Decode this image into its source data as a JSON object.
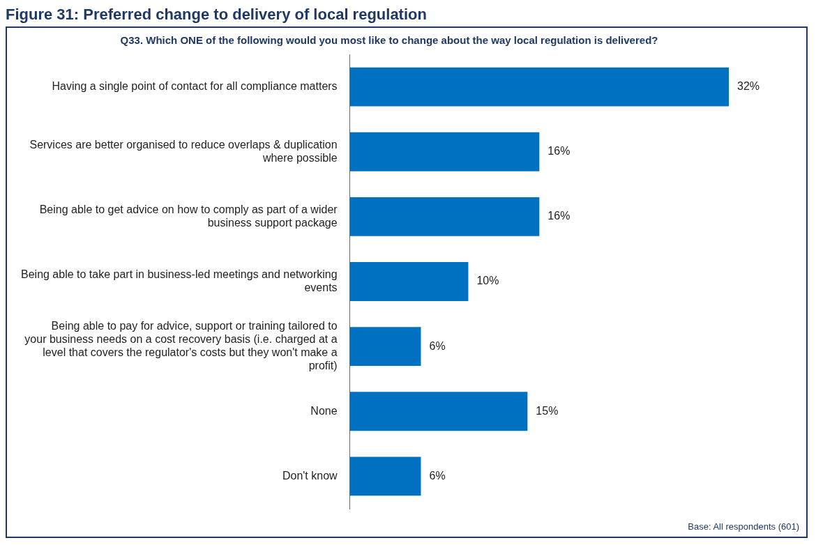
{
  "chart_data": {
    "type": "bar",
    "orientation": "horizontal",
    "title": "Figure 31: Preferred change to delivery of local regulation",
    "subtitle": "Q33. Which ONE of the following would you most like to change about the way local regulation is delivered?",
    "categories": [
      "Having a single point of contact for all compliance matters",
      "Services are better organised to reduce overlaps & duplication where possible",
      "Being able to get advice on how to comply as part of a wider business support package",
      "Being able to take part in business-led meetings and networking events",
      "Being able to pay for advice, support or training tailored to your business needs on a cost recovery basis (i.e. charged at a level that covers the regulator's costs but they won't make a profit)",
      "None",
      "Don't know"
    ],
    "values": [
      32,
      16,
      16,
      10,
      6,
      15,
      6
    ],
    "value_labels": [
      "32%",
      "16%",
      "16%",
      "10%",
      "6%",
      "15%",
      "6%"
    ],
    "color": "#0070c0",
    "grid": false,
    "legend": false,
    "tick_labels": "y",
    "annotations": [
      "Base: All respondents (601)"
    ]
  }
}
